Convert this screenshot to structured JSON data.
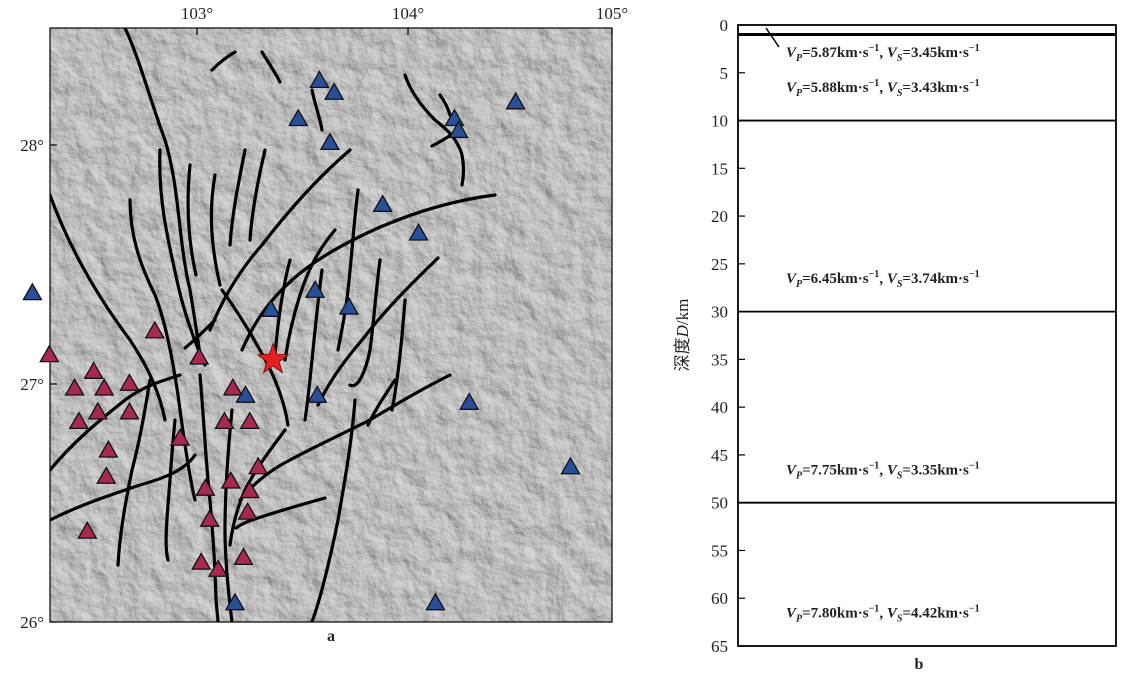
{
  "map": {
    "panel_label": "a",
    "lon_ticks": [
      "103°",
      "104°",
      "105°"
    ],
    "lat_ticks": [
      "28°",
      "27°",
      "26°"
    ],
    "epicenter_icon": "red-star-icon",
    "station_icon": "triangle-icon",
    "colors": {
      "relief_base": "#b8b8b8",
      "fault": "#000000",
      "blue_station": "#2a4f9a",
      "red_station": "#a8294c",
      "epicenter": "#e52020"
    },
    "blue_stations_lonlat": [
      [
        103.58,
        28.27
      ],
      [
        103.65,
        28.22
      ],
      [
        103.48,
        28.11
      ],
      [
        103.63,
        28.01
      ],
      [
        104.22,
        28.11
      ],
      [
        104.24,
        28.06
      ],
      [
        104.51,
        28.18
      ],
      [
        103.88,
        27.75
      ],
      [
        104.05,
        27.63
      ],
      [
        102.22,
        27.38
      ],
      [
        103.56,
        27.39
      ],
      [
        103.72,
        27.32
      ],
      [
        103.35,
        27.31
      ],
      [
        103.23,
        26.95
      ],
      [
        103.57,
        26.95
      ],
      [
        104.29,
        26.92
      ],
      [
        104.77,
        26.65
      ],
      [
        103.18,
        26.08
      ],
      [
        104.13,
        26.08
      ]
    ],
    "red_stations_lonlat": [
      [
        102.3,
        27.12
      ],
      [
        102.51,
        27.05
      ],
      [
        102.42,
        26.98
      ],
      [
        102.56,
        26.98
      ],
      [
        102.68,
        27.0
      ],
      [
        102.8,
        27.22
      ],
      [
        103.01,
        27.11
      ],
      [
        102.53,
        26.88
      ],
      [
        102.44,
        26.84
      ],
      [
        102.68,
        26.88
      ],
      [
        102.92,
        26.77
      ],
      [
        102.58,
        26.72
      ],
      [
        103.17,
        26.98
      ],
      [
        103.13,
        26.84
      ],
      [
        103.25,
        26.84
      ],
      [
        102.57,
        26.61
      ],
      [
        103.16,
        26.59
      ],
      [
        103.04,
        26.56
      ],
      [
        103.29,
        26.65
      ],
      [
        103.25,
        26.55
      ],
      [
        103.06,
        26.43
      ],
      [
        103.24,
        26.46
      ],
      [
        102.48,
        26.38
      ],
      [
        103.02,
        26.25
      ],
      [
        103.22,
        26.27
      ],
      [
        103.1,
        26.22
      ]
    ],
    "epicenter_lonlat": [
      103.36,
      27.1
    ]
  },
  "profile": {
    "panel_label": "b",
    "y_axis_label": "深度",
    "y_axis_var": "D",
    "y_axis_unit": "/km",
    "depth_ticks": [
      0,
      5,
      10,
      15,
      20,
      25,
      30,
      35,
      40,
      45,
      50,
      55,
      60,
      65
    ],
    "depth_range": [
      0,
      65
    ],
    "boundaries_km": [
      1,
      10,
      30,
      50
    ],
    "layers": [
      {
        "vp": "5.87",
        "vs": "3.45",
        "label_depth_km": 2.8
      },
      {
        "vp": "5.88",
        "vs": "3.43",
        "label_depth_km": 6.5
      },
      {
        "vp": "6.45",
        "vs": "3.74",
        "label_depth_km": 26.5
      },
      {
        "vp": "7.75",
        "vs": "3.35",
        "label_depth_km": 46.5
      },
      {
        "vp": "7.80",
        "vs": "4.42",
        "label_depth_km": 61.5
      }
    ],
    "unit_text": "km·s"
  }
}
